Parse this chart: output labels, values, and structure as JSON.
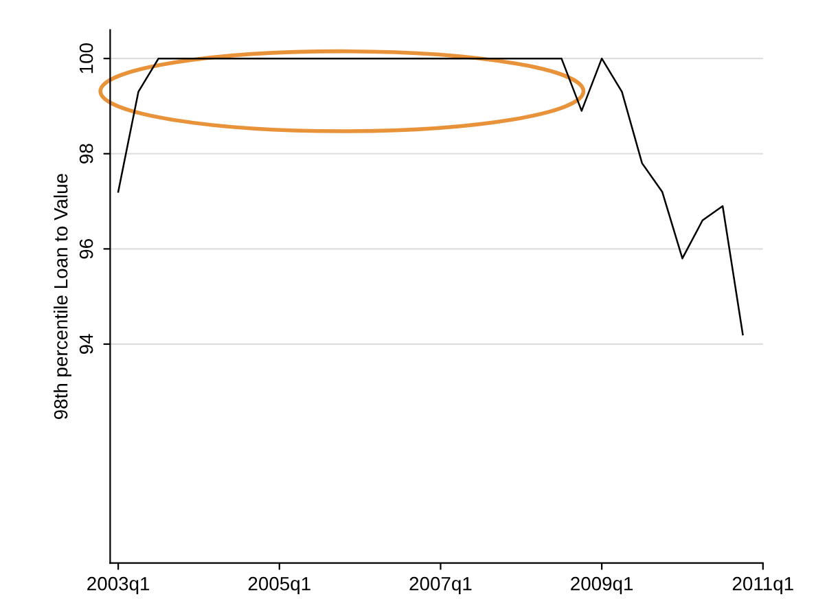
{
  "chart_data": {
    "type": "line",
    "ylabel": "98th percentile Loan to Value",
    "categories": [
      "2003q1",
      null,
      null,
      null,
      null,
      null,
      null,
      null,
      "2005q1",
      null,
      null,
      null,
      null,
      null,
      null,
      null,
      "2007q1",
      null,
      null,
      null,
      null,
      null,
      null,
      null,
      "2009q1",
      null,
      null,
      null,
      null,
      null,
      null,
      null,
      "2011q1"
    ],
    "series": [
      {
        "color": "#000000",
        "values": [
          97.2,
          99.3,
          100,
          100,
          100,
          100,
          100,
          100,
          100,
          100,
          100,
          100,
          100,
          100,
          100,
          100,
          100,
          100,
          100,
          100,
          100,
          100,
          100,
          98.9,
          100,
          99.3,
          97.8,
          97.2,
          95.8,
          96.6,
          96.9,
          94.2,
          null
        ]
      }
    ],
    "ylim": [
      89.4,
      100.6
    ],
    "yticks": [
      94,
      96,
      98,
      100
    ],
    "grid": "y",
    "legend": false,
    "marker": "none",
    "line_style": "solid"
  }
}
